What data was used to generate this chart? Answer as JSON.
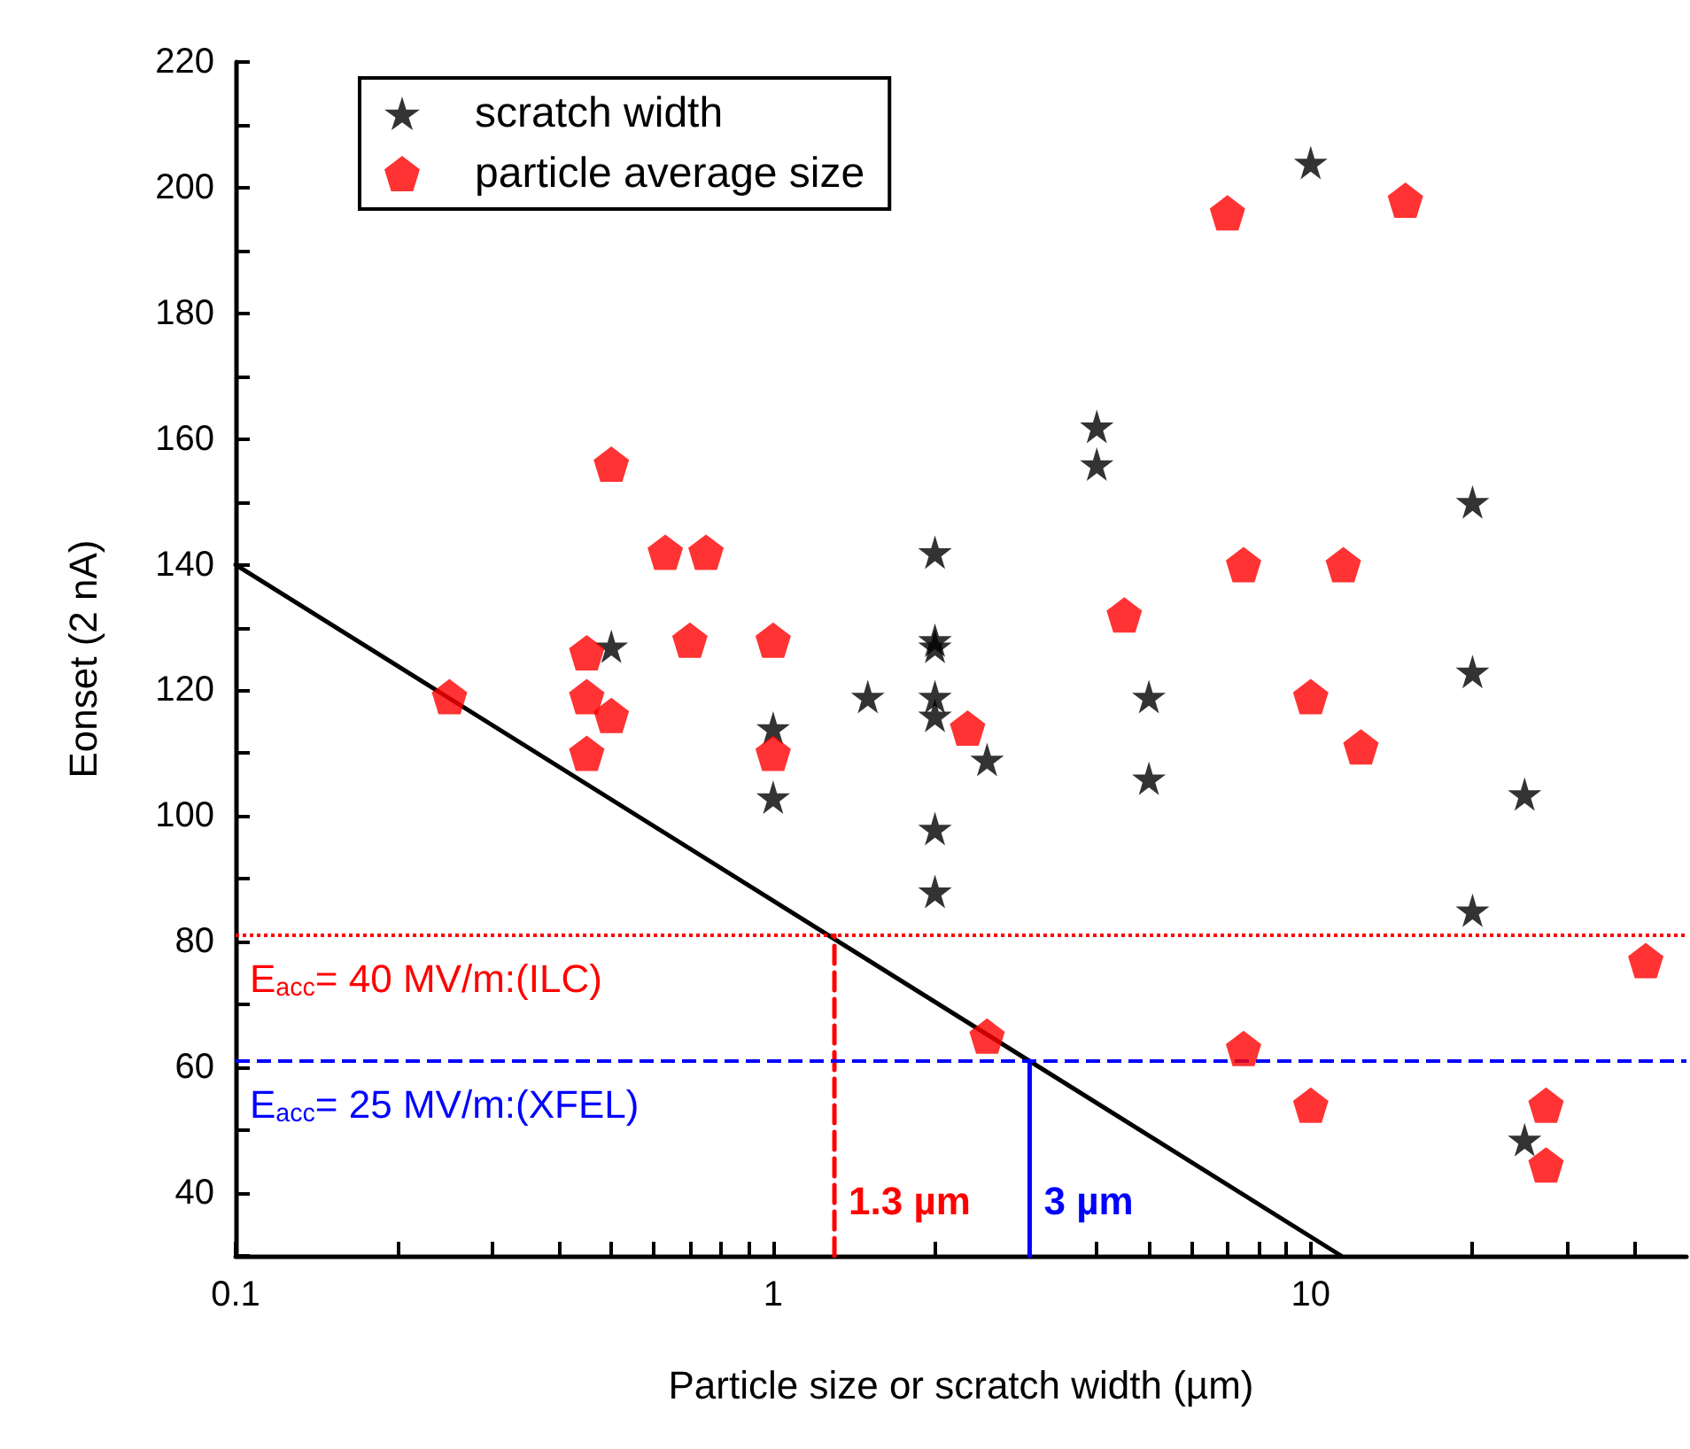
{
  "chart_data": {
    "type": "scatter",
    "xlabel": "Particle size or scratch width (µm)",
    "ylabel": "Eonset (2 nA)",
    "log": "x",
    "xlim": [
      0.1,
      50
    ],
    "xticks": [
      0.1,
      {
        "value": 0.2,
        "label": null
      },
      {
        "value": 0.3,
        "label": null
      },
      {
        "value": 0.4,
        "label": null
      },
      {
        "value": 0.5,
        "label": null
      },
      {
        "value": 0.6,
        "label": null
      },
      {
        "value": 0.7,
        "label": null
      },
      {
        "value": 0.8,
        "label": null
      },
      {
        "value": 0.9,
        "label": null
      },
      1,
      {
        "value": 2,
        "label": null
      },
      {
        "value": 3,
        "label": null
      },
      {
        "value": 4,
        "label": null
      },
      {
        "value": 5,
        "label": null
      },
      {
        "value": 6,
        "label": null
      },
      {
        "value": 7,
        "label": null
      },
      {
        "value": 8,
        "label": null
      },
      {
        "value": 9,
        "label": null
      },
      10,
      {
        "value": 20,
        "label": null
      },
      {
        "value": 30,
        "label": null
      },
      {
        "value": 40,
        "label": null
      }
    ],
    "ylim": [
      30,
      220
    ],
    "yticks": [
      {
        "value": 30,
        "label": null
      },
      40,
      {
        "value": 50,
        "label": null
      },
      60,
      {
        "value": 70,
        "label": null
      },
      80,
      {
        "value": 90,
        "label": null
      },
      100,
      {
        "value": 110,
        "label": null
      },
      120,
      {
        "value": 130,
        "label": null
      },
      140,
      {
        "value": 150,
        "label": null
      },
      160,
      {
        "value": 170,
        "label": null
      },
      180,
      {
        "value": 190,
        "label": null
      },
      200,
      {
        "value": 210,
        "label": null
      },
      220
    ],
    "grid": false,
    "legend": "top left",
    "series": [
      {
        "name": "scratch width",
        "marker": "star",
        "color": "#000000",
        "x": [
          0.5,
          1,
          1,
          1.5,
          2,
          2,
          2,
          2,
          2,
          2,
          2,
          2.5,
          4,
          4,
          5,
          5,
          10,
          20,
          20,
          20,
          25,
          25
        ],
        "values": [
          127,
          114,
          103,
          119,
          142,
          128,
          127,
          119,
          116,
          98,
          88,
          109,
          162,
          156,
          119,
          106,
          204,
          150,
          123,
          85,
          103.5,
          48.5
        ]
      },
      {
        "name": "particle average size",
        "color": "#ff0000",
        "x": [
          0.25,
          0.45,
          0.45,
          0.45,
          0.5,
          0.5,
          0.63,
          0.7,
          0.75,
          1,
          1,
          2.3,
          2.5,
          4.5,
          7,
          7.5,
          7.5,
          10,
          10,
          11.5,
          12.4,
          15,
          27.4,
          27.4,
          42
        ],
        "values": [
          119,
          126,
          119,
          110,
          156,
          116,
          142,
          128,
          142,
          128,
          110,
          114,
          65,
          132,
          196,
          140,
          63,
          119,
          54,
          140,
          111,
          198,
          54,
          44.5,
          77
        ]
      },
      {
        "type": "line",
        "marker": "none",
        "line_style": "solid",
        "color": "#000000",
        "x": [
          0.1,
          11.4
        ],
        "values": [
          140,
          30
        ]
      },
      {
        "name": "1.3 µm",
        "type": "line",
        "marker": "none",
        "line_style": "dashed",
        "color": "#ff0000",
        "x": [
          1.3,
          1.3
        ],
        "values": [
          30,
          81
        ]
      },
      {
        "name": "3 µm",
        "type": "line",
        "marker": "none",
        "line_style": "solid",
        "color": "#0000ff",
        "x": [
          3,
          3
        ],
        "values": [
          30,
          61
        ]
      }
    ],
    "ref_lines": [
      {
        "axis": "y",
        "value": 81,
        "color": "#ff0000",
        "line_style": "dotted"
      },
      {
        "axis": "y",
        "value": 61,
        "color": "#0000ff",
        "line_style": "dashed"
      }
    ],
    "annotations": [
      {
        "text": "E$_{acc}$= 40 MV/m:(ILC)",
        "x": 0.1,
        "y": 81
      },
      {
        "text": "E$_{acc}$= 25 MV/m:(XFEL)",
        "x": 0.1,
        "y": 61
      }
    ]
  }
}
